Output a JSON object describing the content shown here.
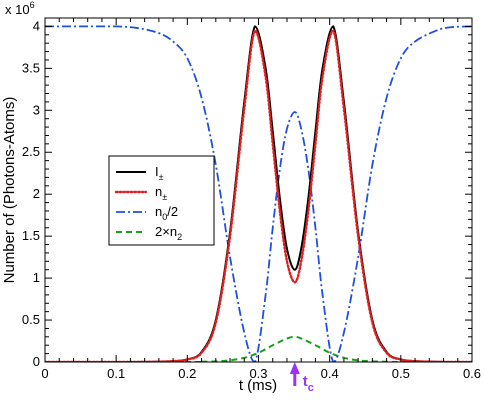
{
  "chart_data": {
    "type": "line",
    "title": "",
    "xlabel": "t (ms)",
    "ylabel": "Number of (Photons-Atoms)",
    "y_scale_label": "x 10",
    "y_scale_exponent": "6",
    "xlim": [
      0,
      0.6
    ],
    "ylim": [
      0,
      4.1
    ],
    "x_ticks": [
      0,
      0.1,
      0.2,
      0.3,
      0.4,
      0.5,
      0.6
    ],
    "x_tick_labels": [
      "0",
      "0.1",
      "0.2",
      "0.3",
      "0.4",
      "0.5",
      "0.6"
    ],
    "y_ticks": [
      0,
      0.5,
      1,
      1.5,
      2,
      2.5,
      3,
      3.5,
      4
    ],
    "y_tick_labels": [
      "0",
      "0.5",
      "1",
      "1.5",
      "2",
      "2.5",
      "3",
      "3.5",
      "4"
    ],
    "grid": false,
    "legend_position": "middle-left",
    "legend": [
      {
        "base": "I",
        "sub": "±",
        "sup": ""
      },
      {
        "base": "n",
        "sub": "±",
        "sup": ""
      },
      {
        "base": "n",
        "sub": "0",
        "suffix": "/2"
      },
      {
        "base": "2×n",
        "sub": "2",
        "suffix": ""
      }
    ],
    "annotation": {
      "text": "t",
      "sub": "c",
      "x": 0.351,
      "color": "#9b30ff"
    },
    "series": [
      {
        "name": "I±",
        "color": "#000000",
        "style": "solid",
        "x": [
          0,
          0.1,
          0.15,
          0.18,
          0.2,
          0.22,
          0.24,
          0.26,
          0.28,
          0.295,
          0.31,
          0.32,
          0.33,
          0.34,
          0.351,
          0.36,
          0.37,
          0.38,
          0.39,
          0.405,
          0.42,
          0.44,
          0.46,
          0.48,
          0.5,
          0.52,
          0.55,
          0.6
        ],
        "y": [
          0,
          0,
          0.002,
          0.01,
          0.03,
          0.12,
          0.5,
          1.55,
          3.1,
          4.0,
          3.5,
          2.75,
          1.95,
          1.35,
          1.1,
          1.35,
          1.95,
          2.75,
          3.5,
          4.0,
          3.1,
          1.55,
          0.5,
          0.12,
          0.03,
          0.01,
          0.002,
          0
        ]
      },
      {
        "name": "n±",
        "color": "#e02020",
        "style": "dotted",
        "x": [
          0,
          0.1,
          0.15,
          0.18,
          0.2,
          0.22,
          0.24,
          0.26,
          0.28,
          0.295,
          0.31,
          0.32,
          0.33,
          0.34,
          0.351,
          0.36,
          0.37,
          0.38,
          0.39,
          0.405,
          0.42,
          0.44,
          0.46,
          0.48,
          0.5,
          0.52,
          0.55,
          0.6
        ],
        "y": [
          0,
          0,
          0.002,
          0.01,
          0.03,
          0.11,
          0.47,
          1.5,
          3.02,
          3.95,
          3.4,
          2.6,
          1.8,
          1.2,
          0.95,
          1.2,
          1.8,
          2.6,
          3.4,
          3.95,
          3.02,
          1.5,
          0.47,
          0.11,
          0.03,
          0.01,
          0.002,
          0
        ]
      },
      {
        "name": "n0/2",
        "color": "#1f4fe0",
        "style": "dashdot",
        "x": [
          0,
          0.05,
          0.1,
          0.13,
          0.16,
          0.18,
          0.2,
          0.22,
          0.24,
          0.26,
          0.28,
          0.295,
          0.31,
          0.32,
          0.33,
          0.34,
          0.351,
          0.36,
          0.37,
          0.38,
          0.39,
          0.405,
          0.42,
          0.44,
          0.46,
          0.48,
          0.5,
          0.52,
          0.55,
          0.57,
          0.6
        ],
        "y": [
          4.0,
          4.0,
          4.0,
          3.98,
          3.92,
          3.82,
          3.62,
          3.15,
          2.35,
          1.25,
          0.35,
          0.0,
          0.8,
          1.6,
          2.3,
          2.78,
          2.98,
          2.78,
          2.3,
          1.6,
          0.8,
          0.0,
          0.35,
          1.25,
          2.35,
          3.15,
          3.62,
          3.82,
          3.95,
          3.99,
          4.0
        ]
      },
      {
        "name": "2×n2",
        "color": "#1aa01a",
        "style": "dashed",
        "x": [
          0,
          0.2,
          0.22,
          0.24,
          0.26,
          0.28,
          0.3,
          0.32,
          0.34,
          0.351,
          0.36,
          0.38,
          0.4,
          0.42,
          0.44,
          0.46,
          0.48,
          0.5,
          0.6
        ],
        "y": [
          0,
          0,
          0.003,
          0.008,
          0.02,
          0.05,
          0.11,
          0.2,
          0.28,
          0.3,
          0.28,
          0.2,
          0.11,
          0.05,
          0.02,
          0.008,
          0.003,
          0,
          0
        ]
      }
    ]
  }
}
